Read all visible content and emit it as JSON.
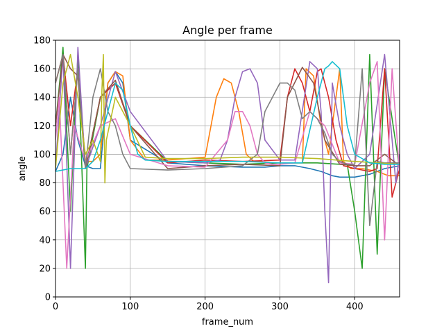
{
  "chart_data": {
    "type": "line",
    "title": "Angle per frame",
    "xlabel": "frame_num",
    "ylabel": "angle",
    "xlim": [
      0,
      460
    ],
    "ylim": [
      0,
      180
    ],
    "xticks": [
      0,
      100,
      200,
      300,
      400
    ],
    "yticks": [
      0,
      20,
      40,
      60,
      80,
      100,
      120,
      140,
      160,
      180
    ],
    "grid": true,
    "palette": [
      "#1f77b4",
      "#ff7f0e",
      "#2ca02c",
      "#d62728",
      "#9467bd",
      "#8c564b",
      "#e377c2",
      "#7f7f7f",
      "#bcbd22",
      "#17becf"
    ],
    "series": [
      {
        "color": "#1f77b4",
        "x": [
          0,
          10,
          20,
          30,
          40,
          50,
          60,
          70,
          80,
          90,
          100,
          150,
          200,
          250,
          280,
          300,
          320,
          340,
          355,
          365,
          370,
          380,
          400,
          420,
          440,
          460
        ],
        "y": [
          88,
          100,
          140,
          110,
          92,
          90,
          90,
          150,
          158,
          150,
          110,
          94,
          92,
          91,
          91,
          92,
          92,
          90,
          88,
          86,
          85,
          84,
          84,
          86,
          90,
          92
        ]
      },
      {
        "color": "#ff7f0e",
        "x": [
          0,
          10,
          20,
          30,
          40,
          50,
          60,
          70,
          80,
          90,
          100,
          120,
          150,
          200,
          215,
          225,
          235,
          245,
          255,
          265,
          300,
          330,
          335,
          345,
          355,
          365,
          375,
          380,
          385,
          395,
          410,
          430,
          445,
          460
        ],
        "y": [
          150,
          170,
          100,
          160,
          95,
          95,
          100,
          150,
          158,
          155,
          110,
          96,
          96,
          98,
          140,
          153,
          150,
          130,
          100,
          95,
          94,
          94,
          160,
          155,
          120,
          100,
          140,
          160,
          95,
          90,
          90,
          88,
          85,
          85
        ]
      },
      {
        "color": "#2ca02c",
        "x": [
          0,
          10,
          20,
          30,
          40,
          42,
          60,
          80,
          100,
          150,
          200,
          250,
          300,
          350,
          380,
          390,
          400,
          410,
          420,
          430,
          440,
          460
        ],
        "y": [
          120,
          175,
          60,
          170,
          20,
          90,
          140,
          150,
          120,
          95,
          94,
          93,
          94,
          94,
          93,
          93,
          60,
          20,
          170,
          30,
          160,
          90
        ]
      },
      {
        "color": "#d62728",
        "x": [
          0,
          10,
          20,
          30,
          40,
          60,
          80,
          100,
          150,
          200,
          250,
          300,
          310,
          320,
          330,
          340,
          350,
          355,
          365,
          375,
          385,
          400,
          420,
          430,
          440,
          450,
          460
        ],
        "y": [
          150,
          170,
          120,
          160,
          90,
          140,
          150,
          120,
          94,
          96,
          95,
          96,
          140,
          160,
          150,
          130,
          158,
          160,
          140,
          110,
          92,
          90,
          88,
          90,
          160,
          70,
          90
        ]
      },
      {
        "color": "#9467bd",
        "x": [
          0,
          10,
          20,
          30,
          40,
          60,
          80,
          100,
          150,
          200,
          220,
          230,
          240,
          250,
          260,
          270,
          280,
          300,
          320,
          340,
          350,
          355,
          360,
          365,
          370,
          380,
          390,
          400,
          420,
          440,
          455,
          460
        ],
        "y": [
          90,
          170,
          20,
          175,
          90,
          120,
          158,
          130,
          95,
          94,
          96,
          110,
          140,
          158,
          160,
          150,
          110,
          96,
          96,
          165,
          160,
          130,
          60,
          10,
          150,
          120,
          100,
          90,
          100,
          170,
          80,
          100
        ]
      },
      {
        "color": "#8c564b",
        "x": [
          0,
          10,
          20,
          30,
          40,
          60,
          80,
          100,
          150,
          200,
          250,
          300,
          310,
          330,
          345,
          360,
          380,
          400,
          420,
          440,
          460
        ],
        "y": [
          120,
          170,
          160,
          155,
          90,
          140,
          152,
          120,
          90,
          92,
          93,
          92,
          140,
          161,
          150,
          110,
          93,
          92,
          92,
          100,
          92
        ]
      },
      {
        "color": "#e377c2",
        "x": [
          0,
          5,
          15,
          25,
          40,
          60,
          80,
          100,
          150,
          200,
          230,
          240,
          250,
          260,
          270,
          280,
          290,
          300,
          320,
          340,
          360,
          380,
          400,
          420,
          430,
          440,
          450,
          460
        ],
        "y": [
          110,
          140,
          20,
          120,
          95,
          120,
          125,
          100,
          92,
          91,
          110,
          130,
          130,
          120,
          100,
          94,
          93,
          93,
          94,
          130,
          120,
          94,
          93,
          150,
          165,
          40,
          160,
          86
        ]
      },
      {
        "color": "#7f7f7f",
        "x": [
          0,
          10,
          20,
          30,
          40,
          50,
          60,
          70,
          80,
          90,
          100,
          150,
          200,
          250,
          270,
          280,
          290,
          300,
          310,
          320,
          330,
          340,
          350,
          360,
          370,
          380,
          390,
          400,
          410,
          420,
          430,
          440,
          460
        ],
        "y": [
          150,
          170,
          100,
          160,
          90,
          140,
          160,
          130,
          120,
          100,
          90,
          89,
          90,
          92,
          100,
          130,
          140,
          150,
          150,
          145,
          125,
          130,
          125,
          115,
          100,
          95,
          93,
          93,
          160,
          50,
          95,
          94,
          94
        ]
      },
      {
        "color": "#bcbd22",
        "x": [
          0,
          10,
          20,
          30,
          40,
          50,
          60,
          62,
          64,
          66,
          68,
          80,
          100,
          120,
          150,
          200,
          250,
          300,
          350,
          400,
          460
        ],
        "y": [
          90,
          150,
          170,
          140,
          100,
          110,
          95,
          145,
          170,
          80,
          110,
          140,
          120,
          98,
          97,
          97,
          98,
          98,
          97,
          95,
          93
        ]
      },
      {
        "color": "#17becf",
        "x": [
          0,
          20,
          40,
          50,
          60,
          80,
          90,
          100,
          110,
          120,
          150,
          200,
          250,
          300,
          330,
          350,
          360,
          365,
          370,
          380,
          390,
          400,
          420,
          440,
          460
        ],
        "y": [
          88,
          90,
          90,
          95,
          110,
          150,
          145,
          120,
          100,
          96,
          95,
          95,
          95,
          94,
          94,
          140,
          160,
          162,
          165,
          160,
          120,
          100,
          94,
          93,
          93
        ]
      }
    ]
  }
}
